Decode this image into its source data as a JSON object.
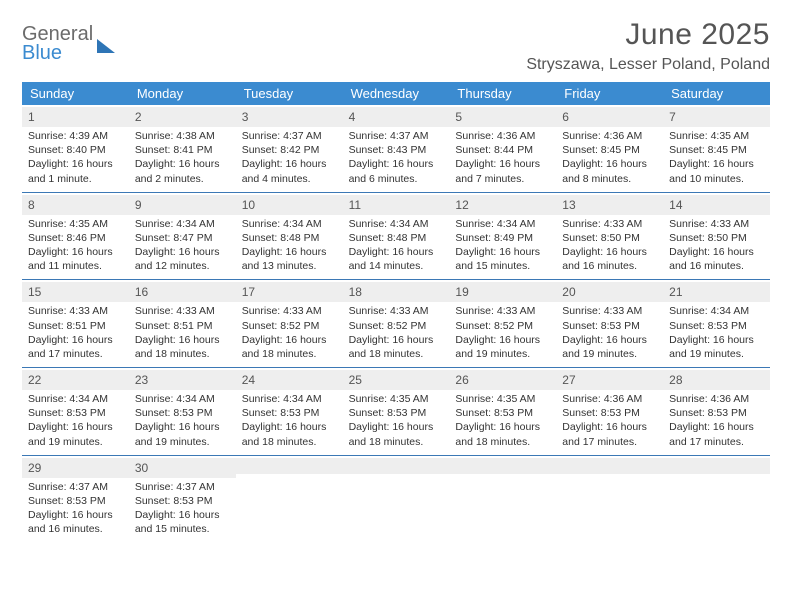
{
  "logo": {
    "line1": "General",
    "line2": "Blue"
  },
  "header": {
    "title": "June 2025",
    "location": "Stryszawa, Lesser Poland, Poland"
  },
  "styling": {
    "header_bg": "#3b8bd0",
    "row_border": "#3b78b5",
    "daynum_bg": "#eeeeee",
    "page_bg": "#ffffff",
    "weekday_fontsize": 13,
    "daynum_fontsize": 12,
    "body_fontsize": 10.5,
    "title_fontsize": 30,
    "location_fontsize": 16
  },
  "weekdays": [
    "Sunday",
    "Monday",
    "Tuesday",
    "Wednesday",
    "Thursday",
    "Friday",
    "Saturday"
  ],
  "days": [
    {
      "n": "1",
      "sr": "4:39 AM",
      "ss": "8:40 PM",
      "dl": "16 hours and 1 minute."
    },
    {
      "n": "2",
      "sr": "4:38 AM",
      "ss": "8:41 PM",
      "dl": "16 hours and 2 minutes."
    },
    {
      "n": "3",
      "sr": "4:37 AM",
      "ss": "8:42 PM",
      "dl": "16 hours and 4 minutes."
    },
    {
      "n": "4",
      "sr": "4:37 AM",
      "ss": "8:43 PM",
      "dl": "16 hours and 6 minutes."
    },
    {
      "n": "5",
      "sr": "4:36 AM",
      "ss": "8:44 PM",
      "dl": "16 hours and 7 minutes."
    },
    {
      "n": "6",
      "sr": "4:36 AM",
      "ss": "8:45 PM",
      "dl": "16 hours and 8 minutes."
    },
    {
      "n": "7",
      "sr": "4:35 AM",
      "ss": "8:45 PM",
      "dl": "16 hours and 10 minutes."
    },
    {
      "n": "8",
      "sr": "4:35 AM",
      "ss": "8:46 PM",
      "dl": "16 hours and 11 minutes."
    },
    {
      "n": "9",
      "sr": "4:34 AM",
      "ss": "8:47 PM",
      "dl": "16 hours and 12 minutes."
    },
    {
      "n": "10",
      "sr": "4:34 AM",
      "ss": "8:48 PM",
      "dl": "16 hours and 13 minutes."
    },
    {
      "n": "11",
      "sr": "4:34 AM",
      "ss": "8:48 PM",
      "dl": "16 hours and 14 minutes."
    },
    {
      "n": "12",
      "sr": "4:34 AM",
      "ss": "8:49 PM",
      "dl": "16 hours and 15 minutes."
    },
    {
      "n": "13",
      "sr": "4:33 AM",
      "ss": "8:50 PM",
      "dl": "16 hours and 16 minutes."
    },
    {
      "n": "14",
      "sr": "4:33 AM",
      "ss": "8:50 PM",
      "dl": "16 hours and 16 minutes."
    },
    {
      "n": "15",
      "sr": "4:33 AM",
      "ss": "8:51 PM",
      "dl": "16 hours and 17 minutes."
    },
    {
      "n": "16",
      "sr": "4:33 AM",
      "ss": "8:51 PM",
      "dl": "16 hours and 18 minutes."
    },
    {
      "n": "17",
      "sr": "4:33 AM",
      "ss": "8:52 PM",
      "dl": "16 hours and 18 minutes."
    },
    {
      "n": "18",
      "sr": "4:33 AM",
      "ss": "8:52 PM",
      "dl": "16 hours and 18 minutes."
    },
    {
      "n": "19",
      "sr": "4:33 AM",
      "ss": "8:52 PM",
      "dl": "16 hours and 19 minutes."
    },
    {
      "n": "20",
      "sr": "4:33 AM",
      "ss": "8:53 PM",
      "dl": "16 hours and 19 minutes."
    },
    {
      "n": "21",
      "sr": "4:34 AM",
      "ss": "8:53 PM",
      "dl": "16 hours and 19 minutes."
    },
    {
      "n": "22",
      "sr": "4:34 AM",
      "ss": "8:53 PM",
      "dl": "16 hours and 19 minutes."
    },
    {
      "n": "23",
      "sr": "4:34 AM",
      "ss": "8:53 PM",
      "dl": "16 hours and 19 minutes."
    },
    {
      "n": "24",
      "sr": "4:34 AM",
      "ss": "8:53 PM",
      "dl": "16 hours and 18 minutes."
    },
    {
      "n": "25",
      "sr": "4:35 AM",
      "ss": "8:53 PM",
      "dl": "16 hours and 18 minutes."
    },
    {
      "n": "26",
      "sr": "4:35 AM",
      "ss": "8:53 PM",
      "dl": "16 hours and 18 minutes."
    },
    {
      "n": "27",
      "sr": "4:36 AM",
      "ss": "8:53 PM",
      "dl": "16 hours and 17 minutes."
    },
    {
      "n": "28",
      "sr": "4:36 AM",
      "ss": "8:53 PM",
      "dl": "16 hours and 17 minutes."
    },
    {
      "n": "29",
      "sr": "4:37 AM",
      "ss": "8:53 PM",
      "dl": "16 hours and 16 minutes."
    },
    {
      "n": "30",
      "sr": "4:37 AM",
      "ss": "8:53 PM",
      "dl": "16 hours and 15 minutes."
    }
  ],
  "labels": {
    "sunrise": "Sunrise: ",
    "sunset": "Sunset: ",
    "daylight": "Daylight: "
  },
  "calendar": {
    "start_weekday": 0,
    "total_cells": 35
  }
}
